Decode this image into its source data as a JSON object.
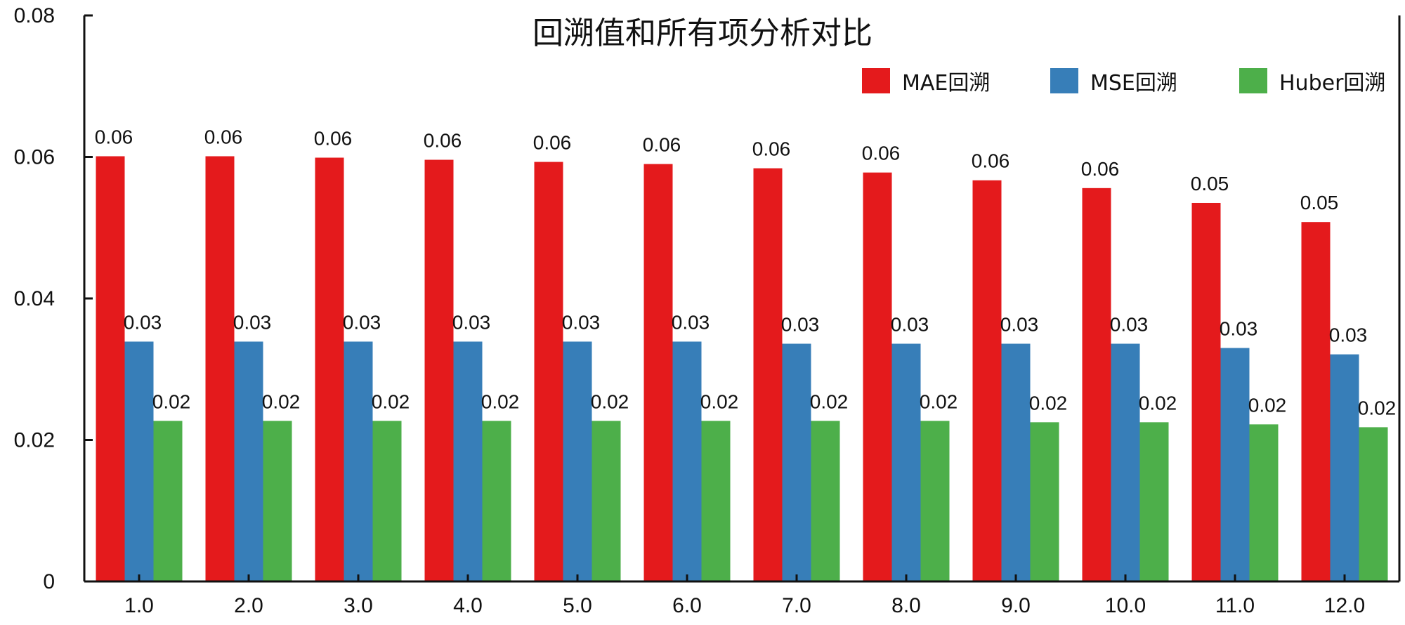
{
  "chart_data": {
    "type": "bar",
    "title": "回溯值和所有项分析对比",
    "xlabel": "",
    "ylabel": "",
    "categories": [
      "1.0",
      "2.0",
      "3.0",
      "4.0",
      "5.0",
      "6.0",
      "7.0",
      "8.0",
      "9.0",
      "10.0",
      "11.0",
      "12.0"
    ],
    "ylim": [
      0,
      0.08
    ],
    "yticks": [
      0,
      0.02,
      0.04,
      0.06,
      0.08
    ],
    "ytick_labels": [
      "0",
      "0.02",
      "0.04",
      "0.06",
      "0.08"
    ],
    "grid": false,
    "legend_position": "top-right",
    "series": [
      {
        "name": "MAE回溯",
        "color": "#e41a1c",
        "values": [
          0.0601,
          0.0601,
          0.0599,
          0.0596,
          0.0593,
          0.059,
          0.0584,
          0.0578,
          0.0567,
          0.0556,
          0.0535,
          0.0508
        ],
        "labels": [
          "0.06",
          "0.06",
          "0.06",
          "0.06",
          "0.06",
          "0.06",
          "0.06",
          "0.06",
          "0.06",
          "0.06",
          "0.05",
          "0.05"
        ]
      },
      {
        "name": "MSE回溯",
        "color": "#377eb8",
        "values": [
          0.0339,
          0.0339,
          0.0339,
          0.0339,
          0.0339,
          0.0339,
          0.0336,
          0.0336,
          0.0336,
          0.0336,
          0.033,
          0.0321
        ],
        "labels": [
          "0.03",
          "0.03",
          "0.03",
          "0.03",
          "0.03",
          "0.03",
          "0.03",
          "0.03",
          "0.03",
          "0.03",
          "0.03",
          "0.03"
        ]
      },
      {
        "name": "Huber回溯",
        "color": "#4daf4a",
        "values": [
          0.0227,
          0.0227,
          0.0227,
          0.0227,
          0.0227,
          0.0227,
          0.0227,
          0.0227,
          0.0225,
          0.0225,
          0.0222,
          0.0218
        ],
        "labels": [
          "0.02",
          "0.02",
          "0.02",
          "0.02",
          "0.02",
          "0.02",
          "0.02",
          "0.02",
          "0.02",
          "0.02",
          "0.02",
          "0.02"
        ]
      }
    ]
  }
}
